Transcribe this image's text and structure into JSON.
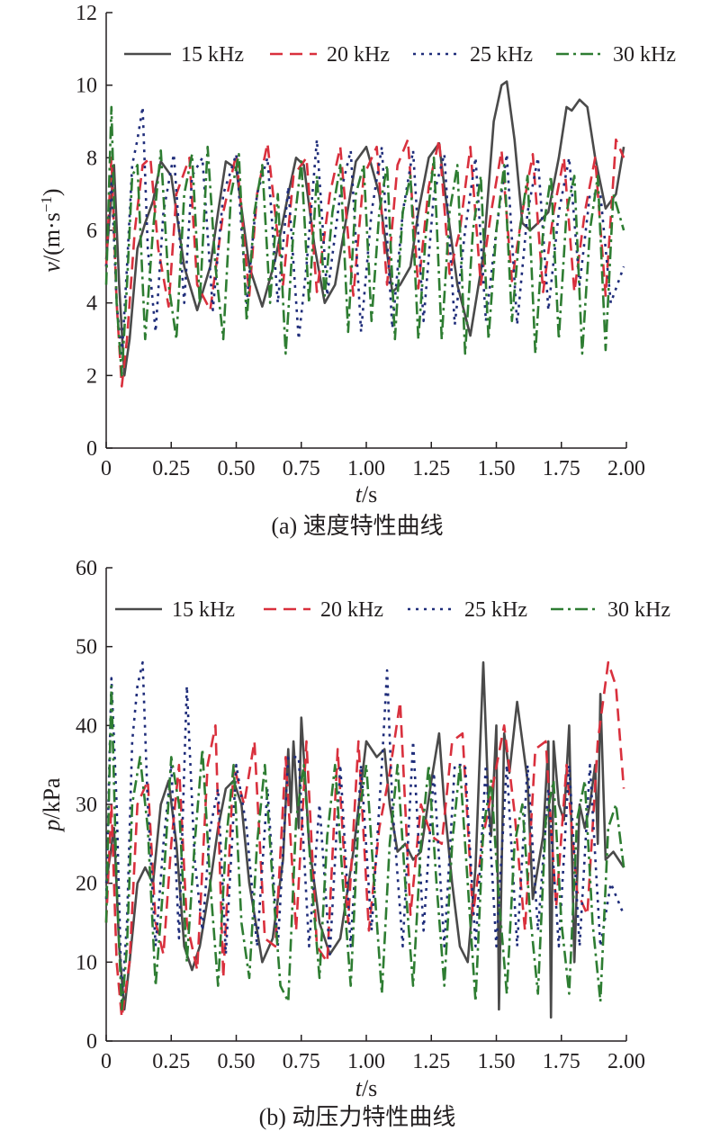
{
  "chart_data": [
    {
      "type": "line",
      "caption": "(a) 速度特性曲线",
      "xlabel_italic": "t",
      "xlabel_unit": "/s",
      "ylabel_italic": "v",
      "ylabel_unit": "/(m·s",
      "ylabel_sup": "−1",
      "ylabel_close": ")",
      "xlim": [
        0,
        2
      ],
      "ylim": [
        0,
        12
      ],
      "xticks": [
        "0",
        "0.25",
        "0.50",
        "0.75",
        "1.00",
        "1.25",
        "1.50",
        "1.75",
        "2.00"
      ],
      "yticks": [
        "0",
        "2",
        "4",
        "6",
        "8",
        "10",
        "12"
      ],
      "legend_position": "top",
      "series": [
        {
          "name": "15 kHz",
          "color": "#4a4a4a",
          "dash": "solid",
          "x": [
            0,
            0.03,
            0.05,
            0.07,
            0.09,
            0.12,
            0.15,
            0.18,
            0.21,
            0.25,
            0.3,
            0.35,
            0.4,
            0.43,
            0.46,
            0.5,
            0.55,
            0.6,
            0.65,
            0.7,
            0.73,
            0.76,
            0.8,
            0.84,
            0.88,
            0.92,
            0.96,
            1.0,
            1.05,
            1.1,
            1.13,
            1.17,
            1.2,
            1.24,
            1.28,
            1.3,
            1.35,
            1.4,
            1.45,
            1.49,
            1.52,
            1.54,
            1.57,
            1.6,
            1.63,
            1.66,
            1.7,
            1.74,
            1.77,
            1.79,
            1.82,
            1.85,
            1.88,
            1.92,
            1.96,
            1.99
          ],
          "y": [
            5.2,
            7.8,
            4.5,
            2.0,
            3.0,
            5.5,
            6.2,
            6.8,
            7.9,
            7.5,
            5.0,
            3.8,
            5.0,
            6.5,
            7.9,
            7.7,
            5.0,
            3.9,
            5.2,
            7.0,
            8.0,
            7.8,
            5.6,
            4.0,
            4.5,
            6.2,
            7.9,
            8.3,
            7.0,
            4.3,
            4.5,
            5.0,
            6.5,
            8.0,
            8.4,
            7.2,
            4.5,
            3.1,
            5.3,
            9.0,
            10.0,
            10.1,
            8.5,
            6.2,
            6.0,
            6.2,
            6.5,
            8.0,
            9.4,
            9.3,
            9.6,
            9.4,
            8.0,
            6.6,
            7.0,
            8.3
          ]
        },
        {
          "name": "20 kHz",
          "color": "#d9303d",
          "dash": "14 8",
          "x": [
            0,
            0.02,
            0.04,
            0.06,
            0.08,
            0.11,
            0.14,
            0.17,
            0.2,
            0.24,
            0.27,
            0.32,
            0.35,
            0.4,
            0.45,
            0.5,
            0.55,
            0.58,
            0.62,
            0.68,
            0.72,
            0.77,
            0.81,
            0.86,
            0.9,
            0.95,
            0.99,
            1.04,
            1.08,
            1.12,
            1.16,
            1.2,
            1.24,
            1.28,
            1.32,
            1.36,
            1.4,
            1.44,
            1.48,
            1.52,
            1.56,
            1.6,
            1.64,
            1.68,
            1.72,
            1.76,
            1.8,
            1.84,
            1.88,
            1.92,
            1.96,
            1.99
          ],
          "y": [
            5.0,
            8.0,
            4.0,
            1.7,
            3.0,
            6.0,
            7.8,
            8.0,
            5.5,
            3.9,
            7.0,
            8.0,
            4.5,
            3.8,
            6.5,
            8.1,
            4.2,
            7.0,
            8.4,
            4.5,
            7.5,
            8.0,
            4.3,
            7.0,
            8.3,
            4.2,
            7.5,
            8.3,
            4.5,
            7.8,
            8.5,
            4.4,
            7.2,
            8.5,
            4.8,
            6.0,
            8.3,
            4.5,
            6.5,
            8.2,
            4.6,
            6.5,
            8.1,
            4.3,
            6.5,
            8.0,
            4.3,
            6.5,
            8.0,
            4.2,
            8.5,
            8.0
          ]
        },
        {
          "name": "25 kHz",
          "color": "#1f2d7a",
          "dash": "3 6",
          "x": [
            0,
            0.02,
            0.04,
            0.06,
            0.08,
            0.1,
            0.12,
            0.14,
            0.16,
            0.19,
            0.22,
            0.26,
            0.3,
            0.33,
            0.37,
            0.41,
            0.45,
            0.5,
            0.54,
            0.58,
            0.62,
            0.66,
            0.7,
            0.74,
            0.77,
            0.81,
            0.85,
            0.9,
            0.94,
            0.98,
            1.02,
            1.06,
            1.1,
            1.14,
            1.18,
            1.22,
            1.26,
            1.3,
            1.34,
            1.38,
            1.42,
            1.46,
            1.5,
            1.54,
            1.58,
            1.62,
            1.66,
            1.7,
            1.74,
            1.78,
            1.82,
            1.86,
            1.9,
            1.94,
            1.99
          ],
          "y": [
            5.0,
            7.5,
            4.0,
            2.5,
            5.0,
            7.8,
            8.5,
            9.4,
            5.5,
            3.2,
            6.5,
            8.1,
            4.0,
            7.5,
            8.0,
            3.8,
            7.0,
            8.1,
            4.0,
            7.0,
            8.0,
            4.0,
            7.2,
            3.0,
            5.0,
            8.5,
            4.2,
            7.0,
            8.2,
            3.2,
            6.5,
            8.3,
            3.3,
            6.5,
            8.2,
            3.5,
            7.0,
            8.1,
            3.4,
            6.0,
            8.0,
            3.5,
            6.0,
            8.1,
            3.4,
            6.5,
            8.0,
            3.8,
            6.5,
            8.0,
            4.5,
            7.0,
            7.0,
            4.0,
            5.0
          ]
        },
        {
          "name": "30 kHz",
          "color": "#2e7d32",
          "dash": "14 5 3 5",
          "x": [
            0,
            0.02,
            0.04,
            0.06,
            0.08,
            0.1,
            0.12,
            0.15,
            0.18,
            0.21,
            0.24,
            0.27,
            0.3,
            0.33,
            0.36,
            0.39,
            0.42,
            0.45,
            0.48,
            0.51,
            0.54,
            0.57,
            0.6,
            0.63,
            0.66,
            0.69,
            0.72,
            0.75,
            0.78,
            0.81,
            0.84,
            0.87,
            0.9,
            0.93,
            0.96,
            0.99,
            1.02,
            1.05,
            1.08,
            1.11,
            1.14,
            1.17,
            1.2,
            1.23,
            1.26,
            1.29,
            1.32,
            1.35,
            1.38,
            1.41,
            1.44,
            1.47,
            1.5,
            1.53,
            1.56,
            1.59,
            1.62,
            1.65,
            1.68,
            1.71,
            1.74,
            1.77,
            1.8,
            1.83,
            1.86,
            1.89,
            1.92,
            1.95,
            1.99
          ],
          "y": [
            4.5,
            9.4,
            4.0,
            2.0,
            4.5,
            7.5,
            7.8,
            3.0,
            6.0,
            8.2,
            4.5,
            3.0,
            7.0,
            8.1,
            4.0,
            8.3,
            5.0,
            3.0,
            7.0,
            8.1,
            3.5,
            6.5,
            7.8,
            4.0,
            7.0,
            2.6,
            6.0,
            7.9,
            4.0,
            7.5,
            4.2,
            6.5,
            7.8,
            3.2,
            7.0,
            7.8,
            3.5,
            6.5,
            7.8,
            3.0,
            6.5,
            7.5,
            3.0,
            6.0,
            8.0,
            3.0,
            6.5,
            7.8,
            2.6,
            6.0,
            7.5,
            3.0,
            6.0,
            7.8,
            3.5,
            6.0,
            7.5,
            2.6,
            6.0,
            7.5,
            3.0,
            6.5,
            7.5,
            2.6,
            6.0,
            7.5,
            2.7,
            7.0,
            6.0
          ]
        }
      ]
    },
    {
      "type": "line",
      "caption": "(b) 动压力特性曲线",
      "xlabel_italic": "t",
      "xlabel_unit": "/s",
      "ylabel_italic": "p",
      "ylabel_unit": "/kPa",
      "xlim": [
        0,
        2
      ],
      "ylim": [
        0,
        60
      ],
      "xticks": [
        "0",
        "0.25",
        "0.50",
        "0.75",
        "1.00",
        "1.25",
        "1.50",
        "1.75",
        "2.00"
      ],
      "yticks": [
        "0",
        "10",
        "20",
        "30",
        "40",
        "50",
        "60"
      ],
      "legend_position": "top",
      "series": [
        {
          "name": "15 kHz",
          "color": "#4a4a4a",
          "dash": "solid",
          "x": [
            0,
            0.03,
            0.05,
            0.07,
            0.09,
            0.12,
            0.15,
            0.18,
            0.21,
            0.24,
            0.27,
            0.3,
            0.33,
            0.36,
            0.4,
            0.43,
            0.46,
            0.49,
            0.52,
            0.55,
            0.6,
            0.64,
            0.68,
            0.7,
            0.71,
            0.72,
            0.74,
            0.75,
            0.76,
            0.78,
            0.82,
            0.86,
            0.9,
            0.95,
            1.0,
            1.02,
            1.04,
            1.07,
            1.09,
            1.12,
            1.15,
            1.18,
            1.21,
            1.25,
            1.28,
            1.3,
            1.33,
            1.36,
            1.39,
            1.42,
            1.45,
            1.47,
            1.48,
            1.5,
            1.51,
            1.53,
            1.55,
            1.57,
            1.58,
            1.6,
            1.62,
            1.64,
            1.66,
            1.68,
            1.7,
            1.71,
            1.72,
            1.74,
            1.76,
            1.78,
            1.8,
            1.82,
            1.84,
            1.86,
            1.88,
            1.89,
            1.9,
            1.92,
            1.95,
            1.99
          ],
          "y": [
            20,
            27,
            12,
            4,
            10,
            20,
            22,
            20,
            30,
            33,
            25,
            12,
            9,
            12,
            20,
            27,
            32,
            33,
            30,
            20,
            10,
            13,
            23,
            37,
            29,
            38,
            27,
            41,
            36,
            25,
            15,
            11,
            13,
            24,
            38,
            37,
            36,
            37,
            30,
            24,
            25,
            23,
            24,
            33,
            39,
            30,
            20,
            12,
            10,
            22,
            48,
            30,
            26,
            40,
            4,
            39,
            34,
            40,
            43,
            38,
            33,
            18,
            22,
            26,
            38,
            3,
            38,
            30,
            28,
            40,
            10,
            30,
            27,
            30,
            35,
            25,
            44,
            23,
            24,
            22
          ]
        },
        {
          "name": "20 kHz",
          "color": "#d9303d",
          "dash": "14 8",
          "x": [
            0,
            0.02,
            0.04,
            0.06,
            0.09,
            0.12,
            0.16,
            0.19,
            0.22,
            0.25,
            0.28,
            0.31,
            0.35,
            0.39,
            0.42,
            0.45,
            0.49,
            0.53,
            0.57,
            0.61,
            0.65,
            0.69,
            0.73,
            0.77,
            0.81,
            0.85,
            0.89,
            0.93,
            0.97,
            1.01,
            1.05,
            1.09,
            1.13,
            1.17,
            1.21,
            1.25,
            1.29,
            1.33,
            1.37,
            1.41,
            1.45,
            1.49,
            1.53,
            1.57,
            1.61,
            1.65,
            1.69,
            1.73,
            1.77,
            1.81,
            1.85,
            1.89,
            1.93,
            1.96,
            1.99
          ],
          "y": [
            15,
            30,
            10,
            3,
            10,
            30,
            33,
            15,
            11,
            25,
            35,
            15,
            9,
            35,
            40,
            8,
            35,
            30,
            38,
            13,
            12,
            36,
            14,
            38,
            12,
            10,
            37,
            15,
            38,
            14,
            27,
            34,
            43,
            16,
            30,
            26,
            25,
            38,
            39,
            16,
            26,
            33,
            40,
            29,
            14,
            37,
            38,
            17,
            35,
            19,
            16,
            38,
            48,
            45,
            32
          ]
        },
        {
          "name": "25 kHz",
          "color": "#1f2d7a",
          "dash": "3 6",
          "x": [
            0,
            0.02,
            0.04,
            0.06,
            0.08,
            0.1,
            0.12,
            0.14,
            0.16,
            0.19,
            0.22,
            0.25,
            0.28,
            0.31,
            0.34,
            0.37,
            0.4,
            0.43,
            0.46,
            0.5,
            0.54,
            0.58,
            0.62,
            0.66,
            0.7,
            0.74,
            0.78,
            0.82,
            0.86,
            0.9,
            0.94,
            0.98,
            1.02,
            1.06,
            1.08,
            1.1,
            1.14,
            1.18,
            1.22,
            1.26,
            1.3,
            1.34,
            1.38,
            1.42,
            1.46,
            1.5,
            1.54,
            1.58,
            1.62,
            1.66,
            1.7,
            1.74,
            1.78,
            1.82,
            1.86,
            1.9,
            1.94,
            1.99
          ],
          "y": [
            18,
            46,
            30,
            5,
            15,
            38,
            45,
            48,
            30,
            12,
            25,
            35,
            13,
            45,
            23,
            14,
            27,
            32,
            11,
            35,
            27,
            12,
            32,
            12,
            36,
            36,
            12,
            30,
            11,
            35,
            12,
            35,
            14,
            35,
            47,
            30,
            12,
            38,
            14,
            34,
            12,
            35,
            35,
            12,
            35,
            12,
            35,
            12,
            35,
            14,
            32,
            12,
            35,
            12,
            35,
            12,
            20,
            16
          ]
        },
        {
          "name": "30 kHz",
          "color": "#2e7d32",
          "dash": "14 5 3 5",
          "x": [
            0,
            0.02,
            0.04,
            0.06,
            0.08,
            0.1,
            0.13,
            0.16,
            0.19,
            0.22,
            0.25,
            0.28,
            0.31,
            0.34,
            0.37,
            0.4,
            0.43,
            0.46,
            0.49,
            0.52,
            0.55,
            0.58,
            0.61,
            0.64,
            0.67,
            0.7,
            0.73,
            0.76,
            0.79,
            0.82,
            0.85,
            0.88,
            0.91,
            0.94,
            0.97,
            1.0,
            1.03,
            1.06,
            1.09,
            1.12,
            1.15,
            1.18,
            1.21,
            1.24,
            1.27,
            1.3,
            1.33,
            1.36,
            1.39,
            1.42,
            1.45,
            1.48,
            1.51,
            1.54,
            1.57,
            1.6,
            1.63,
            1.66,
            1.69,
            1.72,
            1.75,
            1.78,
            1.81,
            1.84,
            1.87,
            1.9,
            1.93,
            1.96,
            1.99
          ],
          "y": [
            15,
            45,
            20,
            4,
            12,
            30,
            36,
            27,
            7,
            20,
            36,
            30,
            10,
            25,
            37,
            20,
            7,
            25,
            35,
            15,
            8,
            25,
            35,
            20,
            7,
            5,
            28,
            35,
            20,
            8,
            26,
            35,
            20,
            7,
            28,
            35,
            20,
            6,
            25,
            35,
            20,
            7,
            25,
            35,
            20,
            7,
            25,
            35,
            20,
            5,
            27,
            33,
            18,
            6,
            25,
            30,
            16,
            6,
            28,
            33,
            15,
            6,
            28,
            33,
            15,
            5,
            27,
            30,
            22
          ]
        }
      ]
    }
  ]
}
